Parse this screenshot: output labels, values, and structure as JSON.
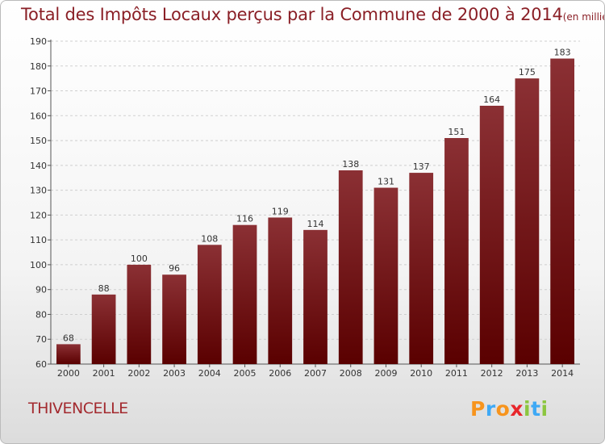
{
  "chart_data": {
    "type": "bar",
    "title": "Total des Impôts Locaux perçus par la Commune de 2000 à 2014",
    "title_unit": "(en milliers d'€)",
    "categories": [
      "2000",
      "2001",
      "2002",
      "2003",
      "2004",
      "2005",
      "2006",
      "2007",
      "2008",
      "2009",
      "2010",
      "2011",
      "2012",
      "2013",
      "2014"
    ],
    "values": [
      68,
      88,
      100,
      96,
      108,
      116,
      119,
      114,
      138,
      131,
      137,
      151,
      164,
      175,
      183
    ],
    "ylim": [
      60,
      190
    ],
    "yticks": [
      60,
      70,
      80,
      90,
      100,
      110,
      120,
      130,
      140,
      150,
      160,
      170,
      180,
      190
    ],
    "xlabel": "",
    "ylabel": "",
    "grid": true,
    "bar_color_top": "#8b3034",
    "bar_color_bottom": "#5a0000"
  },
  "commune": "THIVENCELLE",
  "brand": {
    "letters": [
      "P",
      "r",
      "o",
      "x",
      "i",
      "t",
      "i"
    ],
    "colors": [
      "#f7941d",
      "#3fa9f5",
      "#f7941d",
      "#e8262b",
      "#8cc63f",
      "#3fa9f5",
      "#8cc63f"
    ]
  }
}
